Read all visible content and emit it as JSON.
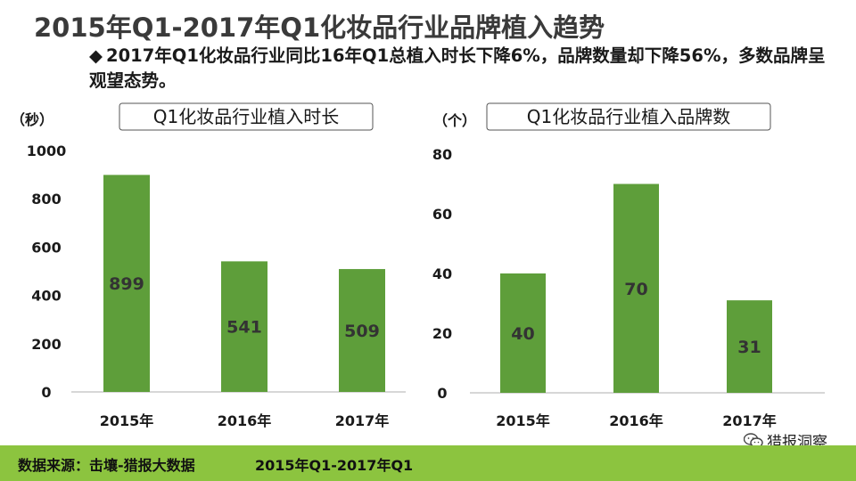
{
  "title": "2015年Q1-2017年Q1化妆品行业品牌植入趋势",
  "subtitle": {
    "bullet": "◆",
    "text": "2017年Q1化妆品行业同比16年Q1总植入时长下降6%，品牌数量却下降56%，多数品牌呈观望态势。"
  },
  "colors": {
    "bar": "#5e9e3a",
    "footer": "#8cc43f",
    "axis": "#bfbfbf"
  },
  "chart_data": [
    {
      "type": "bar",
      "title": "Q1化妆品行业植入时长",
      "ylabel": "（秒）",
      "categories": [
        "2015年",
        "2016年",
        "2017年"
      ],
      "values": [
        899,
        541,
        509
      ],
      "ylim": [
        0,
        1000
      ],
      "yticks": [
        0,
        200,
        400,
        600,
        800,
        1000
      ],
      "grid": false
    },
    {
      "type": "bar",
      "title": "Q1化妆品行业植入品牌数",
      "ylabel": "（个）",
      "categories": [
        "2015年",
        "2016年",
        "2017年"
      ],
      "values": [
        40,
        70,
        31
      ],
      "ylim": [
        0,
        80
      ],
      "yticks": [
        0,
        20,
        40,
        60,
        80
      ],
      "grid": false
    }
  ],
  "footer": {
    "source": "数据来源：击壤-猎报大数据",
    "period": "2015年Q1-2017年Q1"
  },
  "wechat": {
    "account": "猎报洞察",
    "icon": "wechat-icon"
  }
}
